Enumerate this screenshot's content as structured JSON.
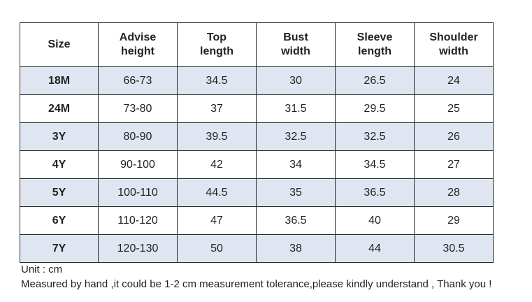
{
  "table": {
    "headers": [
      [
        "Size"
      ],
      [
        "Advise",
        "height"
      ],
      [
        "Top",
        "length"
      ],
      [
        "Bust",
        "width"
      ],
      [
        "Sleeve",
        "length"
      ],
      [
        "Shoulder",
        "width"
      ]
    ],
    "rows": [
      [
        "18M",
        "66-73",
        "34.5",
        "30",
        "26.5",
        "24"
      ],
      [
        "24M",
        "73-80",
        "37",
        "31.5",
        "29.5",
        "25"
      ],
      [
        "3Y",
        "80-90",
        "39.5",
        "32.5",
        "32.5",
        "26"
      ],
      [
        "4Y",
        "90-100",
        "42",
        "34",
        "34.5",
        "27"
      ],
      [
        "5Y",
        "100-110",
        "44.5",
        "35",
        "36.5",
        "28"
      ],
      [
        "6Y",
        "110-120",
        "47",
        "36.5",
        "40",
        "29"
      ],
      [
        "7Y",
        "120-130",
        "50",
        "38",
        "44",
        "30.5"
      ]
    ],
    "shaded_row_color": "#dfe6f1",
    "border_color": "#2b2b2b"
  },
  "notes": {
    "unit": "Unit : cm",
    "tolerance": "Measured by hand ,it could be 1-2 cm measurement tolerance,please kindly understand , Thank you !"
  }
}
